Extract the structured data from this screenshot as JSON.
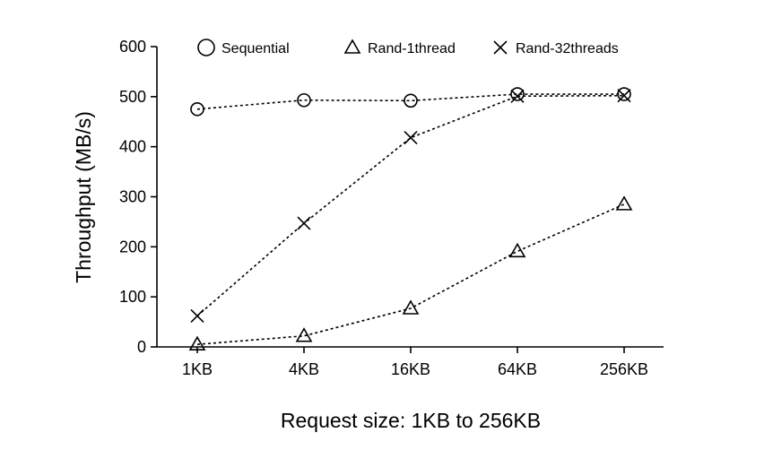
{
  "chart_data": {
    "type": "line",
    "title": "",
    "xlabel": "Request size: 1KB to 256KB",
    "ylabel": "Throughput (MB/s)",
    "categories": [
      "1KB",
      "4KB",
      "16KB",
      "64KB",
      "256KB"
    ],
    "ylim": [
      0,
      600
    ],
    "yticks": [
      0,
      100,
      200,
      300,
      400,
      500,
      600
    ],
    "grid": false,
    "legend_position": "top",
    "series": [
      {
        "name": "Sequential",
        "marker": "circle",
        "values": [
          475,
          493,
          492,
          505,
          505
        ]
      },
      {
        "name": "Rand-1thread",
        "marker": "triangle",
        "values": [
          5,
          22,
          77,
          191,
          285
        ]
      },
      {
        "name": "Rand-32threads",
        "marker": "x",
        "values": [
          62,
          247,
          418,
          501,
          502
        ]
      }
    ]
  }
}
